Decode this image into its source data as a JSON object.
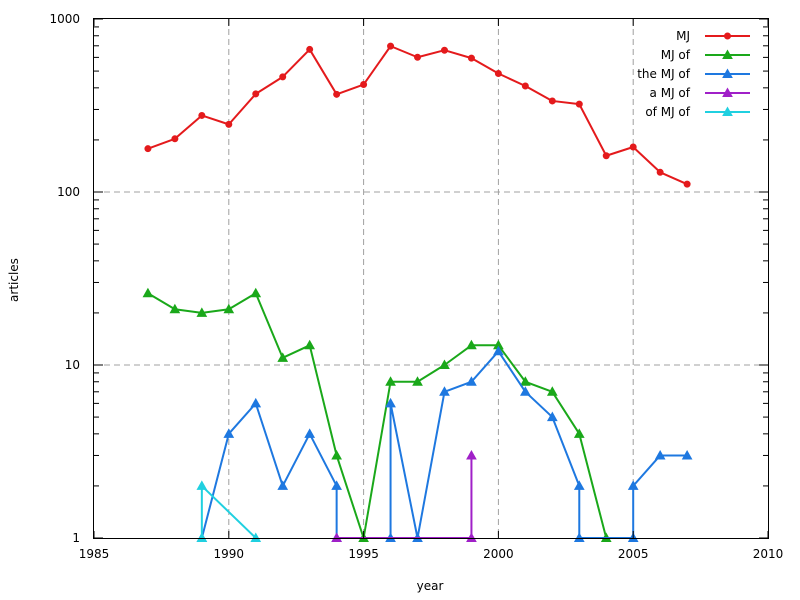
{
  "chart_data": {
    "type": "line",
    "title": "",
    "xlabel": "year",
    "ylabel": "articles",
    "xlim": [
      1985,
      2010
    ],
    "ylim": [
      1,
      1000
    ],
    "yscale": "log",
    "grid": true,
    "legend_position": "top-right",
    "x_ticks": [
      "1985",
      "1990",
      "1995",
      "2000",
      "2005",
      "2010"
    ],
    "y_ticks": [
      "1",
      "10",
      "100",
      "1000"
    ],
    "series": [
      {
        "name": "MJ",
        "color": "#e41a1c",
        "marker": "circle",
        "x": [
          1987,
          1988,
          1989,
          1990,
          1991,
          1992,
          1993,
          1994,
          1995,
          1996,
          1997,
          1998,
          1999,
          2000,
          2001,
          2002,
          2003,
          2004,
          2005,
          2006,
          2007
        ],
        "y": [
          178,
          203,
          277,
          246,
          369,
          463,
          667,
          367,
          418,
          697,
          601,
          660,
          594,
          484,
          410,
          336,
          322,
          162,
          182,
          130,
          111
        ]
      },
      {
        "name": "MJ of",
        "color": "#1aa81a",
        "marker": "triangle",
        "x": [
          1987,
          1988,
          1989,
          1990,
          1991,
          1992,
          1993,
          1994,
          1995,
          1996,
          1997,
          1998,
          1999,
          2000,
          2001,
          2002,
          2003,
          2004
        ],
        "y": [
          26,
          21,
          20,
          21,
          26,
          11,
          13,
          3,
          1,
          8,
          8,
          10,
          13,
          13,
          8,
          7,
          4,
          1
        ]
      },
      {
        "name": "the MJ of",
        "color": "#1e78e0",
        "marker": "triangle",
        "x": [
          1989,
          1990,
          1991,
          1992,
          1993,
          1994,
          1994,
          1996,
          1996,
          1997,
          1998,
          1999,
          2000,
          2001,
          2002,
          2003,
          2003,
          2005,
          2005,
          2006,
          2007
        ],
        "y": [
          1,
          4,
          6,
          2,
          4,
          2,
          1,
          1,
          6,
          1,
          7,
          8,
          12,
          7,
          5,
          2,
          1,
          1,
          2,
          3,
          3
        ]
      },
      {
        "name": "a MJ of",
        "color": "#a020c8",
        "marker": "triangle",
        "x": [
          1994,
          1999,
          1999
        ],
        "y": [
          1,
          1,
          3
        ]
      },
      {
        "name": "of MJ of",
        "color": "#20d0e0",
        "marker": "triangle",
        "x": [
          1989,
          1989,
          1991
        ],
        "y": [
          1,
          2,
          1
        ]
      }
    ]
  }
}
